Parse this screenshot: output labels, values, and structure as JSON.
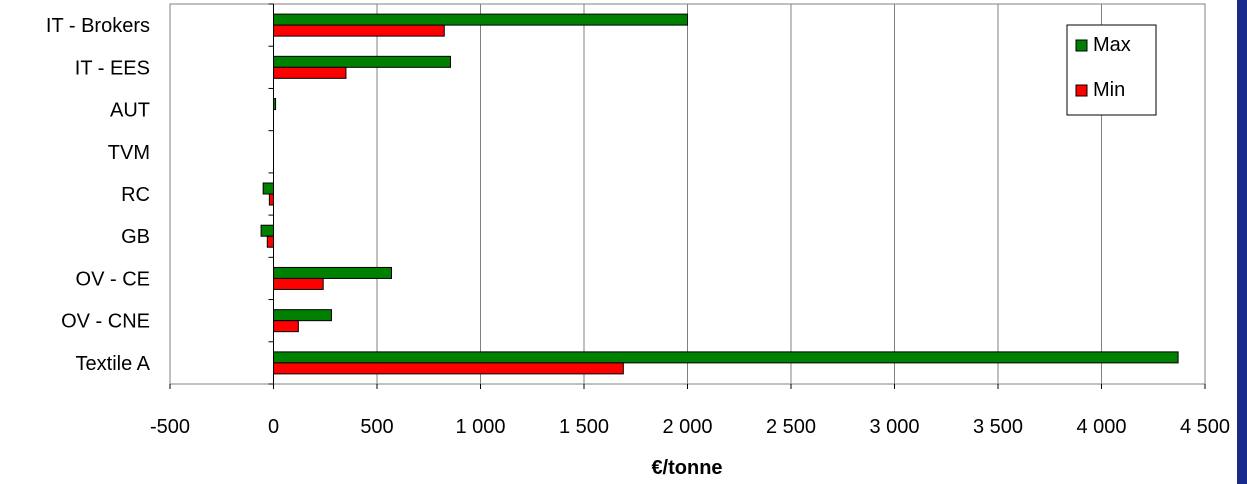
{
  "chart_data": {
    "type": "bar",
    "orientation": "horizontal",
    "categories": [
      "IT - Brokers",
      "IT - EES",
      "AUT",
      "TVM",
      "RC",
      "GB",
      "OV - CE",
      "OV - CNE",
      "Textile A"
    ],
    "series": [
      {
        "name": "Max",
        "color": "#008000",
        "values": [
          2000,
          855,
          10,
          0,
          -50,
          -60,
          570,
          280,
          4370
        ]
      },
      {
        "name": "Min",
        "color": "#ff0000",
        "values": [
          825,
          350,
          0,
          0,
          -20,
          -30,
          240,
          120,
          1690
        ]
      }
    ],
    "xlim": [
      -500,
      4500
    ],
    "xticks": [
      -500,
      0,
      500,
      1000,
      1500,
      2000,
      2500,
      3000,
      3500,
      4000,
      4500
    ],
    "xtick_labels": [
      "-500",
      "0",
      "500",
      "1 000",
      "1 500",
      "2 000",
      "2 500",
      "3 000",
      "3 500",
      "4 000",
      "4 500"
    ],
    "xlabel": "€/tonne",
    "grid": "vertical",
    "legend_position": "top-right",
    "accent_sidebar_color": "#1a2a8a"
  }
}
